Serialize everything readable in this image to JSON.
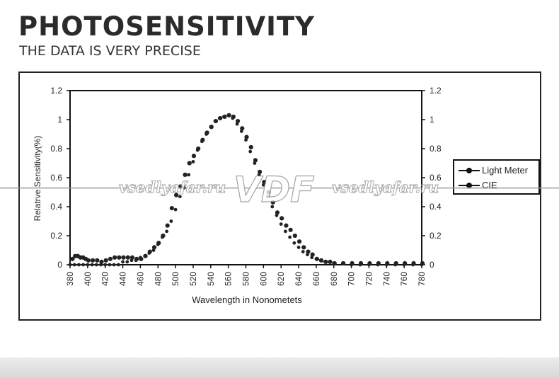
{
  "header": {
    "title": "PHOTOSENSITIVITY",
    "subtitle": "THE DATA IS VERY PRECISE"
  },
  "watermark": {
    "left_text": "vsedlyafar.ru",
    "logo_text": "VDF",
    "right_text": "vsedlyafar.ru"
  },
  "chart_data": {
    "type": "scatter",
    "xlabel": "Wavelength in Nonometets",
    "ylabel": "Relatrve Sensitivity(%)",
    "xlim": [
      380,
      780
    ],
    "ylim": [
      0,
      1.2
    ],
    "x_ticks": [
      "380",
      "400",
      "420",
      "440",
      "460",
      "480",
      "500",
      "520",
      "540",
      "560",
      "580",
      "600",
      "620",
      "640",
      "660",
      "680",
      "700",
      "720",
      "740",
      "760",
      "780"
    ],
    "y_ticks_left": [
      "0",
      "0.2",
      "0.4",
      "0.6",
      "0.8",
      "1",
      "1.2"
    ],
    "y_ticks_right": [
      "0",
      "0.2",
      "0.4",
      "0.6",
      "0.8",
      "1",
      "1.2"
    ],
    "legend_position": "right",
    "grid": false,
    "series": [
      {
        "name": "Light Meter",
        "marker": "circle",
        "color": "#222222",
        "x": [
          382,
          385,
          388,
          391,
          394,
          397,
          400,
          405,
          410,
          415,
          420,
          425,
          430,
          435,
          440,
          445,
          450,
          455,
          460,
          465,
          470,
          475,
          480,
          485,
          490,
          495,
          500,
          505,
          510,
          515,
          520,
          525,
          530,
          535,
          540,
          545,
          550,
          555,
          560,
          565,
          570,
          575,
          580,
          585,
          590,
          595,
          600,
          605,
          610,
          615,
          620,
          625,
          630,
          635,
          640,
          645,
          650,
          655,
          660,
          665,
          670,
          675,
          680,
          690,
          700,
          710,
          720,
          730,
          740,
          750,
          760,
          770,
          780
        ],
        "y": [
          0.04,
          0.06,
          0.06,
          0.05,
          0.05,
          0.04,
          0.03,
          0.03,
          0.03,
          0.02,
          0.03,
          0.04,
          0.05,
          0.05,
          0.05,
          0.05,
          0.05,
          0.04,
          0.04,
          0.06,
          0.09,
          0.12,
          0.15,
          0.2,
          0.27,
          0.39,
          0.48,
          0.54,
          0.62,
          0.7,
          0.75,
          0.8,
          0.86,
          0.91,
          0.95,
          0.99,
          1.01,
          1.02,
          1.03,
          1.02,
          0.99,
          0.94,
          0.88,
          0.81,
          0.72,
          0.64,
          0.57,
          0.5,
          0.43,
          0.36,
          0.32,
          0.27,
          0.24,
          0.2,
          0.16,
          0.12,
          0.09,
          0.07,
          0.04,
          0.03,
          0.02,
          0.02,
          0.01,
          0.01,
          0.01,
          0.01,
          0.01,
          0.01,
          0.01,
          0.01,
          0.01,
          0.01,
          0.01
        ]
      },
      {
        "name": "CIE",
        "marker": "circle",
        "color": "#222222",
        "x": [
          380,
          385,
          390,
          395,
          400,
          405,
          410,
          415,
          420,
          425,
          430,
          435,
          440,
          445,
          450,
          455,
          460,
          465,
          470,
          475,
          480,
          485,
          490,
          495,
          500,
          505,
          510,
          515,
          520,
          525,
          530,
          535,
          540,
          545,
          550,
          555,
          560,
          565,
          570,
          575,
          580,
          585,
          590,
          595,
          600,
          605,
          610,
          615,
          620,
          625,
          630,
          635,
          640,
          645,
          650,
          655,
          660,
          665,
          670,
          675,
          680,
          690,
          700,
          710,
          720,
          730,
          740,
          750,
          760,
          770,
          780
        ],
        "y": [
          0.0,
          0.0,
          0.0,
          0.0,
          0.0,
          0.0,
          0.0,
          0.0,
          0.0,
          0.0,
          0.0,
          0.0,
          0.02,
          0.02,
          0.03,
          0.03,
          0.05,
          0.06,
          0.08,
          0.1,
          0.14,
          0.19,
          0.23,
          0.3,
          0.38,
          0.47,
          0.53,
          0.62,
          0.71,
          0.79,
          0.85,
          0.9,
          0.95,
          0.99,
          1.01,
          1.02,
          1.03,
          1.01,
          0.97,
          0.92,
          0.86,
          0.78,
          0.7,
          0.62,
          0.55,
          0.47,
          0.4,
          0.34,
          0.28,
          0.23,
          0.19,
          0.15,
          0.12,
          0.09,
          0.07,
          0.05,
          0.04,
          0.03,
          0.02,
          0.02,
          0.01,
          0.01,
          0.0,
          0.0,
          0.0,
          0.0,
          0.0,
          0.0,
          0.0,
          0.0,
          0.0
        ]
      }
    ]
  }
}
